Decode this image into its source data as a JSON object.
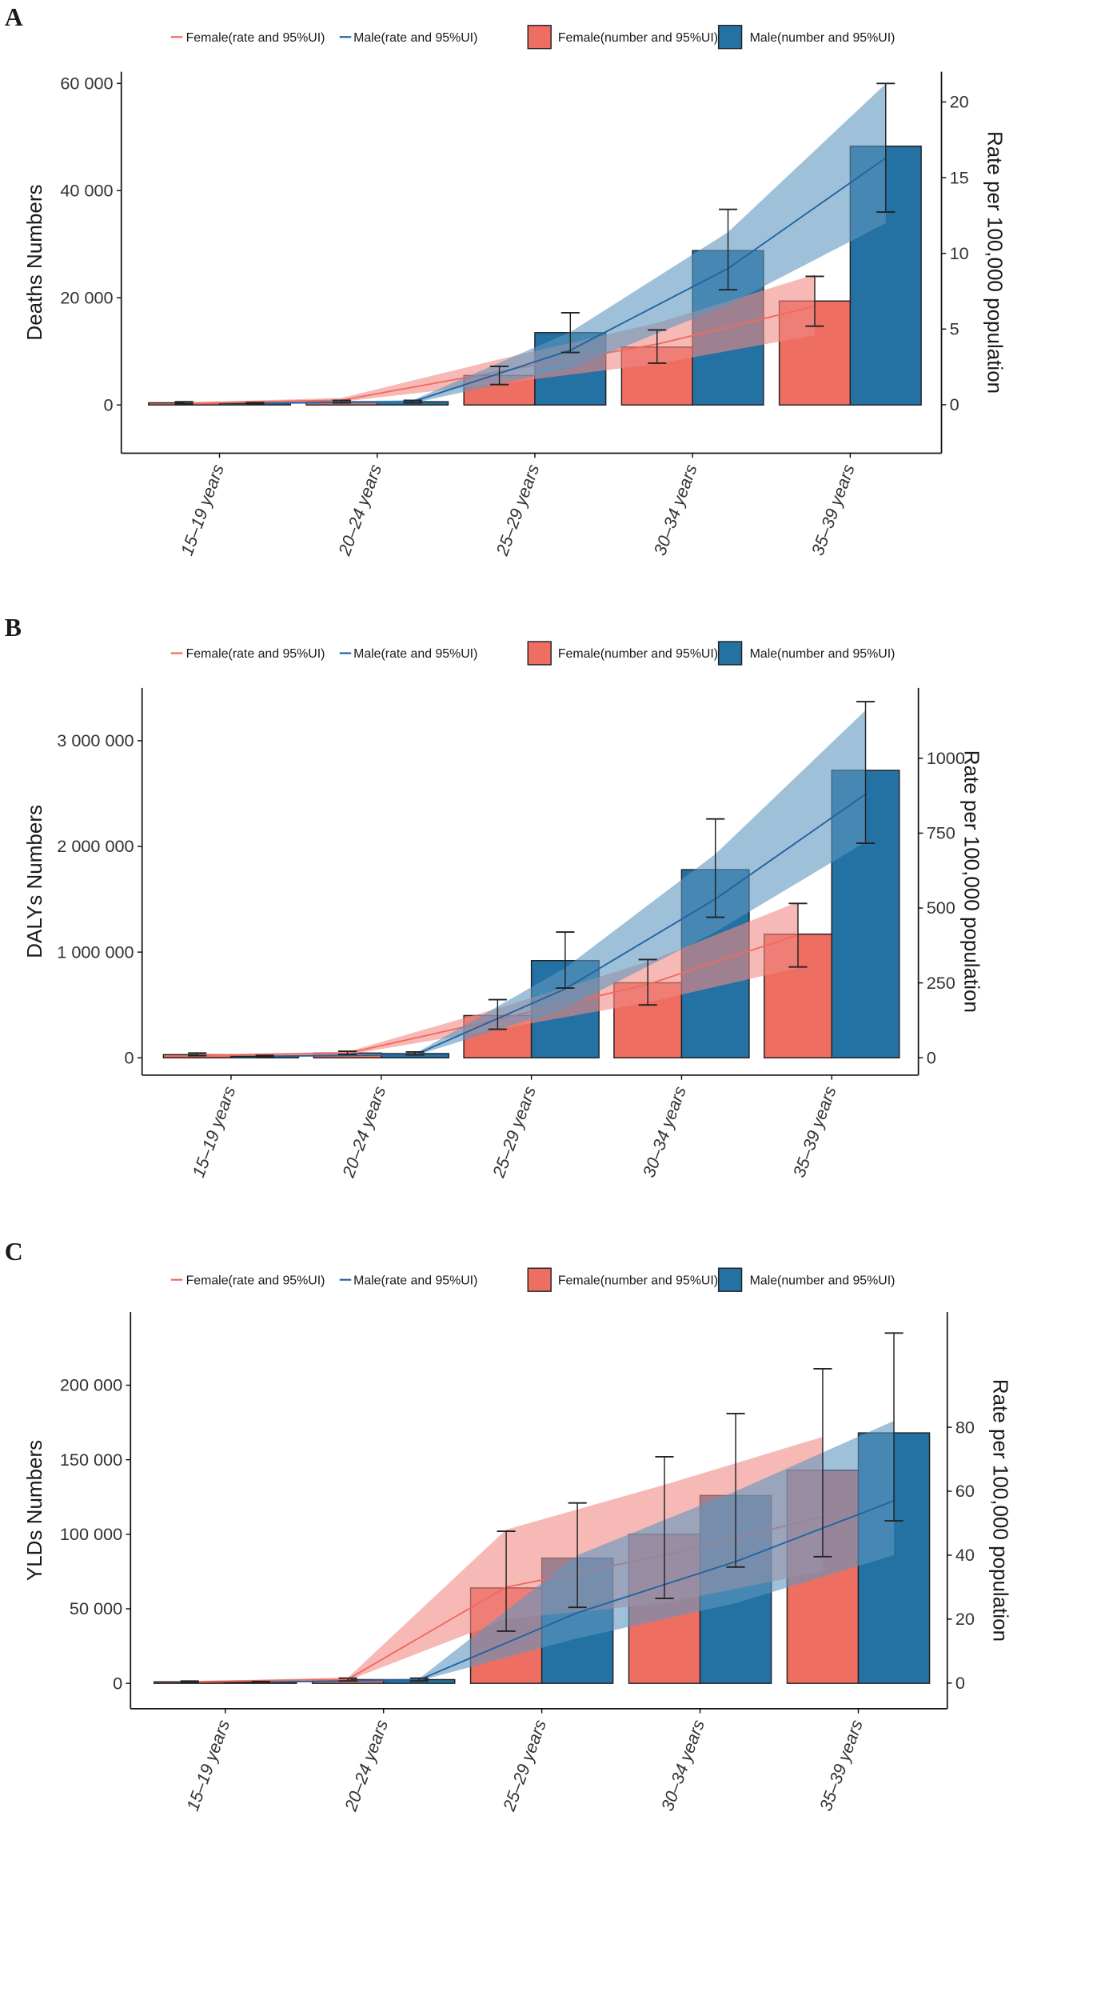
{
  "colors": {
    "female_bar": "#EE6F62",
    "male_bar": "#2471A3",
    "female_ribbon": "#F08A84",
    "male_ribbon": "#5E96C0",
    "female_line": "#F26A5C",
    "male_line": "#1F64A0"
  },
  "legend": [
    "Female(rate and 95%UI)",
    "Male(rate and 95%UI)",
    "Female(number and 95%UI)",
    "Male(number and 95%UI)"
  ],
  "chart_data": [
    {
      "panel": "A",
      "type": "bar+line",
      "ylabel": "Deaths Numbers",
      "y2label": "Rate per 100,000 population",
      "categories": [
        "15–19 years",
        "20–24 years",
        "25–29 years",
        "30–34 years",
        "35–39 years"
      ],
      "ylim": [
        -9000,
        62200
      ],
      "y2lim": [
        -3.2,
        22
      ],
      "yticks": [
        {
          "v": 0,
          "l": "0"
        },
        {
          "v": 20000,
          "l": "20 000"
        },
        {
          "v": 40000,
          "l": "40 000"
        },
        {
          "v": 60000,
          "l": "60 000"
        }
      ],
      "y2ticks": [
        {
          "v": 0,
          "l": "0"
        },
        {
          "v": 5,
          "l": "5"
        },
        {
          "v": 10,
          "l": "10"
        },
        {
          "v": 15,
          "l": "15"
        },
        {
          "v": 20,
          "l": "20"
        }
      ],
      "numbers": {
        "female": {
          "value": [
            400,
            600,
            5500,
            10800,
            19400
          ],
          "lower": [
            250,
            400,
            3800,
            7800,
            14700
          ],
          "upper": [
            600,
            850,
            7200,
            14000,
            24000
          ]
        },
        "male": {
          "value": [
            300,
            600,
            13500,
            28800,
            48300
          ],
          "lower": [
            200,
            400,
            9800,
            21500,
            36000
          ],
          "upper": [
            450,
            850,
            17200,
            36500,
            60000
          ]
        }
      },
      "rates": {
        "female": {
          "value": [
            0.1,
            0.3,
            2.2,
            4.0,
            6.5
          ],
          "lower": [
            0.05,
            0.2,
            1.4,
            2.7,
            4.6
          ],
          "upper": [
            0.15,
            0.45,
            3.0,
            5.4,
            8.6
          ]
        },
        "male": {
          "value": [
            0.1,
            0.2,
            3.6,
            9.0,
            16.3
          ],
          "lower": [
            0.05,
            0.1,
            2.4,
            6.6,
            12.0
          ],
          "upper": [
            0.15,
            0.3,
            4.8,
            11.4,
            21.2
          ]
        }
      }
    },
    {
      "panel": "B",
      "type": "bar+line",
      "ylabel": "DALYs  Numbers",
      "y2label": "Rate per 100,000 population",
      "categories": [
        "15–19 years",
        "20–24 years",
        "25–29 years",
        "30–34 years",
        "35–39 years"
      ],
      "ylim": [
        -164000,
        3500000
      ],
      "y2lim": [
        -58,
        1235
      ],
      "yticks": [
        {
          "v": 0,
          "l": "0"
        },
        {
          "v": 1000000,
          "l": "1 000 000"
        },
        {
          "v": 2000000,
          "l": "2 000 000"
        },
        {
          "v": 3000000,
          "l": "3 000 000"
        }
      ],
      "y2ticks": [
        {
          "v": 0,
          "l": "0"
        },
        {
          "v": 250,
          "l": "250"
        },
        {
          "v": 500,
          "l": "500"
        },
        {
          "v": 750,
          "l": "750"
        },
        {
          "v": 1000,
          "l": "1000"
        }
      ],
      "numbers": {
        "female": {
          "value": [
            30000,
            45000,
            400000,
            710000,
            1170000
          ],
          "lower": [
            20000,
            32000,
            270000,
            500000,
            860000
          ],
          "upper": [
            45000,
            62000,
            550000,
            930000,
            1460000
          ]
        },
        "male": {
          "value": [
            15000,
            40000,
            920000,
            1780000,
            2720000
          ],
          "lower": [
            9000,
            28000,
            660000,
            1330000,
            2030000
          ],
          "upper": [
            22000,
            55000,
            1190000,
            2260000,
            3370000
          ]
        }
      },
      "rates": {
        "female": {
          "value": [
            8,
            15,
            128,
            245,
            410
          ],
          "lower": [
            5,
            10,
            95,
            185,
            300
          ],
          "upper": [
            11,
            20,
            165,
            320,
            520
          ]
        },
        "male": {
          "value": [
            5,
            10,
            230,
            530,
            880
          ],
          "lower": [
            3,
            7,
            165,
            420,
            720
          ],
          "upper": [
            7,
            14,
            300,
            680,
            1160
          ]
        }
      }
    },
    {
      "panel": "C",
      "type": "bar+line",
      "ylabel": "YLDs  Numbers",
      "y2label": "Rate per 100,000 population",
      "categories": [
        "15–19 years",
        "20–24 years",
        "25–29 years",
        "30–34 years",
        "35–39 years"
      ],
      "ylim": [
        -17000,
        249000
      ],
      "y2lim": [
        -8,
        116
      ],
      "yticks": [
        {
          "v": 0,
          "l": "0"
        },
        {
          "v": 50000,
          "l": "50 000"
        },
        {
          "v": 100000,
          "l": "100 000"
        },
        {
          "v": 150000,
          "l": "150 000"
        },
        {
          "v": 200000,
          "l": "200 000"
        }
      ],
      "y2ticks": [
        {
          "v": 0,
          "l": "0"
        },
        {
          "v": 20,
          "l": "20"
        },
        {
          "v": 40,
          "l": "40"
        },
        {
          "v": 60,
          "l": "60"
        },
        {
          "v": 80,
          "l": "80"
        }
      ],
      "numbers": {
        "female": {
          "value": [
            1000,
            2500,
            64000,
            100000,
            143000
          ],
          "lower": [
            600,
            1600,
            35000,
            57000,
            85000
          ],
          "upper": [
            1500,
            3500,
            102000,
            152000,
            211000
          ]
        },
        "male": {
          "value": [
            800,
            2500,
            84000,
            126000,
            168000
          ],
          "lower": [
            500,
            1600,
            51000,
            78000,
            109000
          ],
          "upper": [
            1200,
            3500,
            121000,
            181000,
            235000
          ]
        }
      },
      "rates": {
        "female": {
          "value": [
            0.4,
            1.2,
            30,
            40,
            52
          ],
          "lower": [
            0.25,
            0.8,
            20,
            25,
            35
          ],
          "upper": [
            0.6,
            1.7,
            48,
            62,
            77
          ]
        },
        "male": {
          "value": [
            0.3,
            1.0,
            22,
            38,
            57
          ],
          "lower": [
            0.2,
            0.7,
            14,
            25,
            40
          ],
          "upper": [
            0.45,
            1.4,
            40,
            60,
            82
          ]
        }
      }
    }
  ]
}
